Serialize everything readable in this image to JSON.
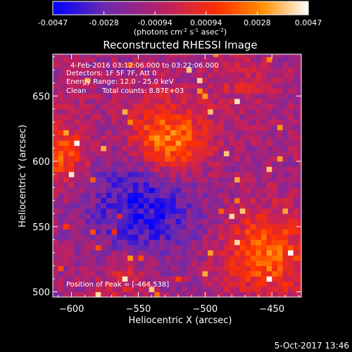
{
  "colorbar": {
    "ticks": [
      "-0.0047",
      "-0.0028",
      "-0.00094",
      "0.00094",
      "0.0028",
      "0.0047"
    ],
    "unit_main": "(photons cm",
    "unit_sup1": "-2",
    "unit_mid": " s",
    "unit_sup2": "-1",
    "unit_mid2": " asec",
    "unit_sup3": "-2",
    "unit_end": ")"
  },
  "info": {
    "line1": "4-Feb-2016 03:12:06.000 to 03:22:06.000",
    "line2": "Detectors: 1F 5F 7F, Att 0",
    "line3": "Energy Range: 12.0 - 25.0 keV",
    "line4_a": "Clean",
    "line4_b": "Total counts: 8.87E+03",
    "peak": "Position of Peak = [-464,538]"
  },
  "footer": {
    "date": "5-Oct-2017 13:46"
  },
  "chart_data": {
    "type": "heatmap",
    "title": "Reconstructed RHESSI Image",
    "xlabel": "Heliocentric X (arcsec)",
    "ylabel": "Heliocentric Y (arcsec)",
    "xlim": [
      -614,
      -428
    ],
    "ylim": [
      496,
      682
    ],
    "x_ticks": [
      -600,
      -550,
      -500,
      -450
    ],
    "y_ticks": [
      500,
      550,
      600,
      650
    ],
    "zlim": [
      -0.0047,
      0.0047
    ],
    "grid": false,
    "colormap": [
      "#0000ff",
      "#6a2ab0",
      "#c02060",
      "#ff3000",
      "#ff9000",
      "#ffffff"
    ],
    "pixel_size_arcsec": 4,
    "sources": [
      {
        "x": -528,
        "y": 615,
        "sigma": 20,
        "amp": 0.0045
      },
      {
        "x": -455,
        "y": 530,
        "sigma": 22,
        "amp": 0.0036
      },
      {
        "x": -608,
        "y": 605,
        "sigma": 16,
        "amp": 0.003
      },
      {
        "x": -475,
        "y": 660,
        "sigma": 14,
        "amp": 0.001
      },
      {
        "x": -560,
        "y": 510,
        "sigma": 14,
        "amp": 0.0016
      },
      {
        "x": -545,
        "y": 570,
        "sigma": 30,
        "amp": -0.003
      }
    ]
  }
}
